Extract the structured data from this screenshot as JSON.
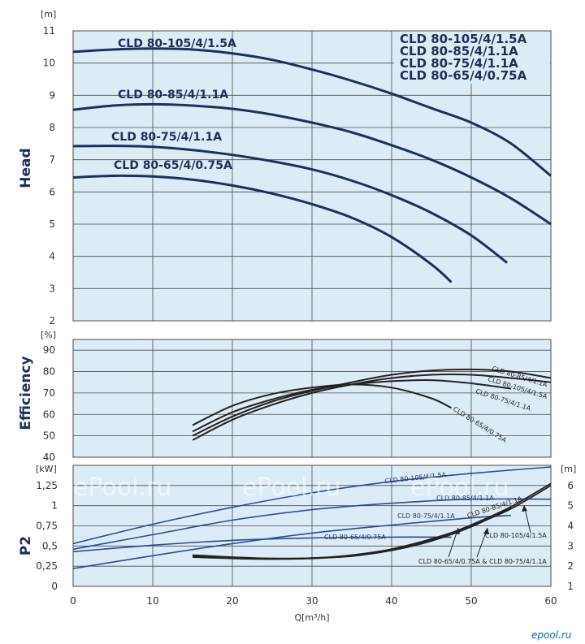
{
  "chart_data": [
    {
      "type": "line",
      "panel": "head",
      "ylabel": "Head",
      "yunit": "[m]",
      "ylim": [
        2,
        11
      ],
      "yticks": [
        "2",
        "3",
        "4",
        "5",
        "6",
        "7",
        "8",
        "9",
        "10",
        "11"
      ],
      "xlim": [
        0,
        60
      ],
      "legend": [
        "CLD 80-105/4/1.5A",
        "CLD 80-85/4/1.1A",
        "CLD 80-75/4/1.1A",
        "CLD 80-65/4/0.75A"
      ],
      "series": [
        {
          "name": "CLD 80-105/4/1.5A",
          "x": [
            0,
            5,
            10,
            15,
            20,
            25,
            30,
            35,
            40,
            45,
            50,
            55,
            60
          ],
          "y": [
            10.35,
            10.42,
            10.45,
            10.42,
            10.3,
            10.1,
            9.8,
            9.45,
            9.05,
            8.6,
            8.15,
            7.5,
            6.5
          ]
        },
        {
          "name": "CLD 80-85/4/1.1A",
          "x": [
            0,
            5,
            10,
            15,
            20,
            25,
            30,
            35,
            40,
            45,
            50,
            55,
            60
          ],
          "y": [
            8.55,
            8.68,
            8.72,
            8.68,
            8.58,
            8.4,
            8.15,
            7.85,
            7.45,
            7.0,
            6.45,
            5.8,
            5.0
          ]
        },
        {
          "name": "CLD 80-75/4/1.1A",
          "x": [
            0,
            5,
            10,
            15,
            20,
            25,
            30,
            35,
            40,
            45,
            50,
            54.5
          ],
          "y": [
            7.42,
            7.43,
            7.4,
            7.3,
            7.15,
            6.95,
            6.7,
            6.35,
            5.9,
            5.35,
            4.65,
            3.8
          ]
        },
        {
          "name": "CLD 80-65/4/0.75A",
          "x": [
            0,
            5,
            10,
            15,
            20,
            25,
            30,
            35,
            40,
            45,
            47.5
          ],
          "y": [
            6.45,
            6.5,
            6.48,
            6.38,
            6.2,
            5.95,
            5.62,
            5.2,
            4.6,
            3.75,
            3.2
          ]
        }
      ],
      "curve_labels": [
        "CLD 80-105/4/1.5A",
        "CLD 80-85/4/1.1A",
        "CLD 80-75/4/1.1A",
        "CLD 80-65/4/0.75A"
      ]
    },
    {
      "type": "line",
      "panel": "efficiency",
      "ylabel": "Efficiency",
      "yunit": "[%]",
      "ylim": [
        40,
        95
      ],
      "yticks": [
        "40",
        "50",
        "60",
        "70",
        "80",
        "90"
      ],
      "xlim": [
        0,
        60
      ],
      "series": [
        {
          "name": "CLD 80-85/4/1.1A",
          "x": [
            15,
            20,
            25,
            30,
            35,
            40,
            45,
            50,
            55,
            60
          ],
          "y": [
            50,
            59,
            66,
            71,
            75,
            78.5,
            80.5,
            81,
            80,
            77
          ]
        },
        {
          "name": "CLD 80-105/4/1.5A",
          "x": [
            15,
            20,
            25,
            30,
            35,
            40,
            45,
            50,
            55,
            60
          ],
          "y": [
            48,
            57.5,
            64.5,
            70,
            74,
            77,
            78.5,
            78.5,
            77,
            75
          ]
        },
        {
          "name": "CLD 80-75/4/1.1A",
          "x": [
            15,
            20,
            25,
            30,
            35,
            40,
            45,
            50,
            55
          ],
          "y": [
            52,
            61,
            67,
            71.5,
            74,
            75.5,
            76,
            74.5,
            72
          ]
        },
        {
          "name": "CLD 80-65/4/0.75A",
          "x": [
            15,
            20,
            25,
            30,
            35,
            40,
            45,
            47.5
          ],
          "y": [
            55,
            64,
            69.5,
            72.5,
            74,
            72.5,
            67.5,
            63
          ]
        }
      ],
      "curve_labels": [
        "CLD 80-85/4/1.1A",
        "CLD 80-105/4/1.5A",
        "CLD 80-75/4/1.1A",
        "CLD 80-65/4/0.75A"
      ]
    },
    {
      "type": "line",
      "panel": "p2",
      "ylabel": "P2",
      "yunit": "[kW]",
      "ylim": [
        0,
        1.5
      ],
      "yticks": [
        "0",
        "0,25",
        "0,5",
        "0,75",
        "1",
        "1,25"
      ],
      "y2unit": "[m]",
      "y2lim": [
        1,
        7
      ],
      "y2ticks": [
        "1",
        "2",
        "3",
        "4",
        "5",
        "6"
      ],
      "xlabel": "Q[m³/h]",
      "xlim": [
        0,
        60
      ],
      "xticks": [
        "0",
        "10",
        "20",
        "30",
        "40",
        "50",
        "60"
      ],
      "series": [
        {
          "name": "CLD 80-105/4/1.5A",
          "x": [
            0,
            10,
            20,
            30,
            40,
            50,
            60
          ],
          "y": [
            0.53,
            0.77,
            0.98,
            1.16,
            1.3,
            1.4,
            1.48
          ]
        },
        {
          "name": "CLD 80-85/4/1.1A",
          "x": [
            0,
            10,
            20,
            30,
            40,
            50,
            60
          ],
          "y": [
            0.46,
            0.64,
            0.82,
            0.95,
            1.03,
            1.08,
            1.08
          ]
        },
        {
          "name": "CLD 80-75/4/1.1A",
          "x": [
            0,
            10,
            20,
            30,
            40,
            50,
            55
          ],
          "y": [
            0.22,
            0.38,
            0.53,
            0.66,
            0.76,
            0.85,
            0.88
          ]
        },
        {
          "name": "CLD 80-65/4/0.75A",
          "x": [
            0,
            10,
            20,
            30,
            40,
            47.5
          ],
          "y": [
            0.43,
            0.51,
            0.57,
            0.6,
            0.61,
            0.61
          ]
        }
      ],
      "npsh_series": [
        {
          "name": "CLD 80-105/4/1.5A",
          "x": [
            15,
            20,
            25,
            30,
            35,
            40,
            45,
            50,
            55,
            60
          ],
          "y": [
            2.5,
            2.42,
            2.38,
            2.4,
            2.55,
            2.85,
            3.35,
            4.0,
            4.85,
            6.0
          ]
        },
        {
          "name": "CLD 80-85/4/1.1A",
          "x": [
            15,
            20,
            25,
            30,
            35,
            40,
            45,
            50,
            55,
            60
          ],
          "y": [
            2.45,
            2.38,
            2.35,
            2.38,
            2.52,
            2.8,
            3.3,
            4.05,
            4.95,
            6.1
          ]
        },
        {
          "name": "CLD 80-65/4/0.75A & CLD 80-75/4/1.1A",
          "x": [
            15,
            20,
            25,
            30,
            35,
            40,
            45,
            50,
            55
          ],
          "y": [
            2.55,
            2.45,
            2.38,
            2.4,
            2.5,
            2.78,
            3.25,
            3.95,
            4.9
          ]
        }
      ],
      "curve_labels": [
        "CLD 80-105/4/1.5A",
        "CLD 80-85/4/1.1A",
        "CLD 80-75/4/1.1A",
        "CLD 80-65/4/0.75A"
      ],
      "npsh_labels": [
        "CLD 80-85/4/1.1A",
        "CLD 80-105/4/1.5A",
        "CLD 80-65/4/0.75A & CLD 80-75/4/1.1A"
      ]
    }
  ],
  "watermark": "ePool.ru",
  "brand": "epool.ru",
  "colors": {
    "panel_bg": "#dcecf6",
    "grid": "#4a4a4a",
    "curve_main": "#1f2f5c",
    "curve_blue": "#2b4a9a",
    "curve_dark": "#222222",
    "label": "#1f2f5c",
    "brand": "#0066dd"
  }
}
